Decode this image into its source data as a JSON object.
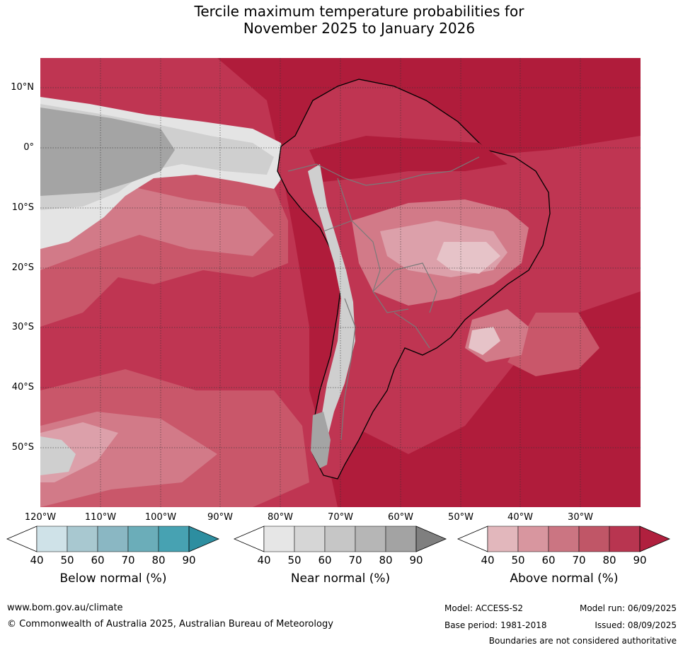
{
  "title": {
    "line1": "Tercile maximum temperature probabilities for",
    "line2": "November 2025 to January 2026"
  },
  "lat_labels": [
    "10°N",
    "0°",
    "10°S",
    "20°S",
    "30°S",
    "40°S",
    "50°S"
  ],
  "lon_labels": [
    "120°W",
    "110°W",
    "100°W",
    "90°W",
    "80°W",
    "70°W",
    "60°W",
    "50°W",
    "40°W",
    "30°W"
  ],
  "colorbars": [
    {
      "title": "Below normal (%)",
      "ticks": [
        "40",
        "50",
        "60",
        "70",
        "80",
        "90"
      ],
      "colors": [
        "#ffffff",
        "#cfe2e8",
        "#a8c8d0",
        "#8ab7c3",
        "#6badb9",
        "#47a2b2",
        "#2d8ea0"
      ]
    },
    {
      "title": "Near normal (%)",
      "ticks": [
        "40",
        "50",
        "60",
        "70",
        "80",
        "90"
      ],
      "colors": [
        "#ffffff",
        "#e6e6e6",
        "#d6d6d6",
        "#c6c6c6",
        "#b6b6b6",
        "#a3a3a3",
        "#7f7f7f"
      ]
    },
    {
      "title": "Above normal (%)",
      "ticks": [
        "40",
        "50",
        "60",
        "70",
        "80",
        "90"
      ],
      "colors": [
        "#ffffff",
        "#e2b7bc",
        "#d8969f",
        "#cb7582",
        "#c05667",
        "#b83550",
        "#b0203e"
      ]
    }
  ],
  "map_colors": {
    "ocean_strong": "#b01c3b",
    "above_80": "#bf3552",
    "above_70": "#c9576a",
    "above_60": "#d27a88",
    "above_50": "#dca0aa",
    "above_40": "#e6c3c8",
    "near_90": "#a4a4a4",
    "near_80": "#b6b6b6",
    "near_60": "#cfcfcf",
    "near_40": "#e4e4e4",
    "below_60": "#8ab7c3",
    "coast": "#000000",
    "border": "#7a7a7a"
  },
  "footer": {
    "url": "www.bom.gov.au/climate",
    "copyright": "© Commonwealth of Australia 2025, Australian Bureau of Meteorology",
    "model": "Model: ACCESS-S2",
    "model_run": "Model run: 06/09/2025",
    "base_period": "Base period: 1981-2018",
    "issued": "Issued: 08/09/2025",
    "boundaries": "Boundaries are not considered authoritative"
  }
}
